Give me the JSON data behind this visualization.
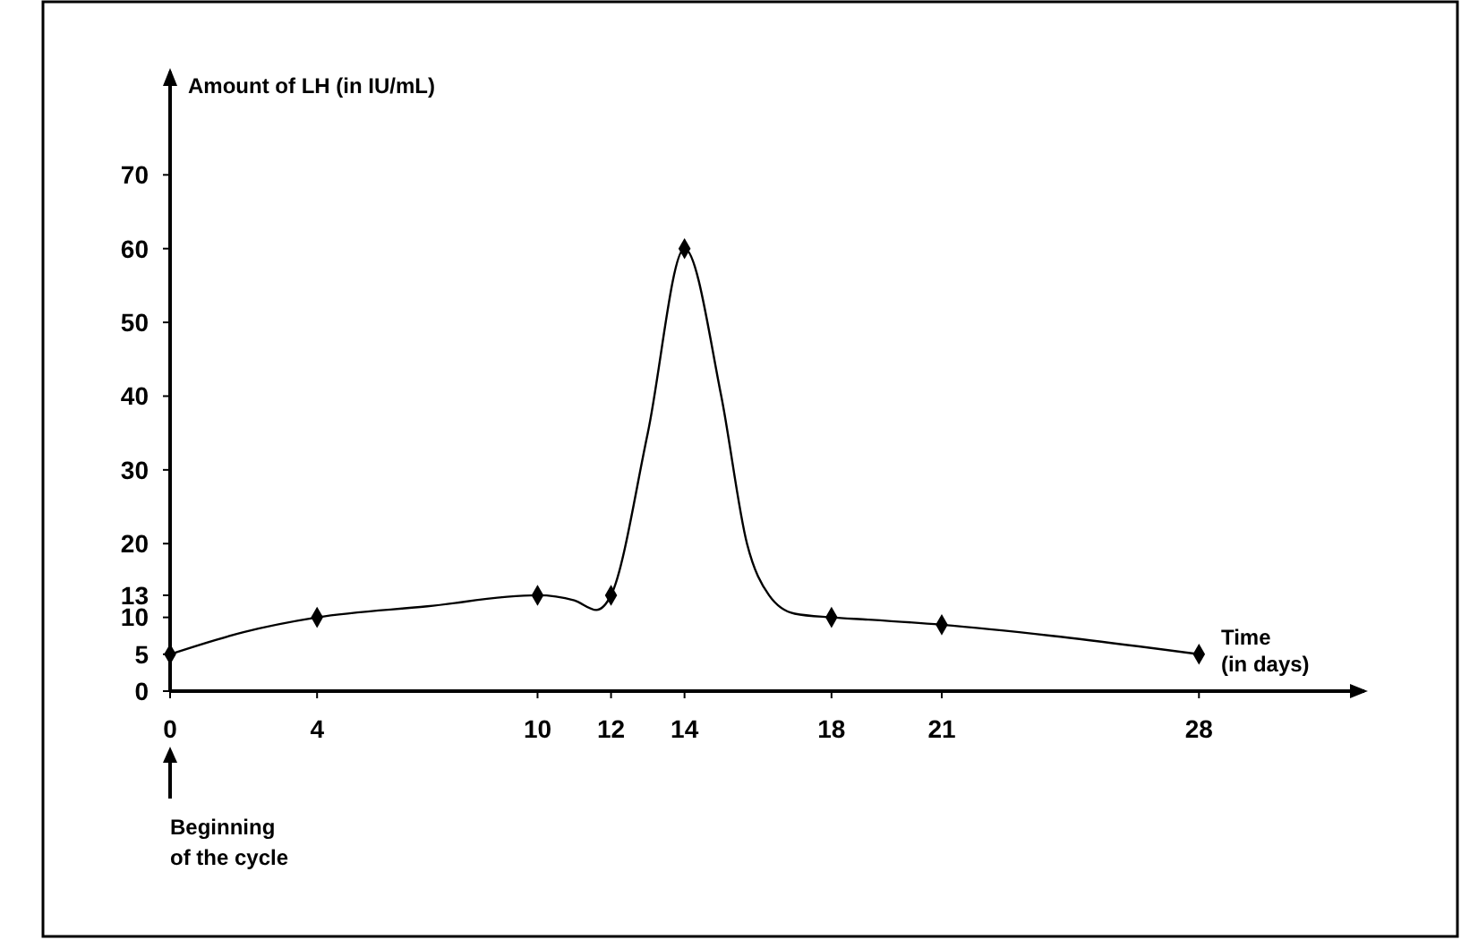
{
  "chart_data": {
    "type": "line",
    "ylabel": "Amount of LH (in IU/mL)",
    "xlabel": "Time\n(in days)",
    "xlim": [
      0,
      32.5
    ],
    "ylim": [
      0,
      84
    ],
    "xticks": [
      0,
      4,
      10,
      12,
      14,
      18,
      21,
      28
    ],
    "yticks": [
      0,
      5,
      10,
      13,
      20,
      30,
      40,
      50,
      60,
      70
    ],
    "grid": false,
    "series": [
      {
        "color": "#000000",
        "marker": "none",
        "x": [
          0,
          2,
          4,
          7,
          10,
          11,
          11.6,
          12,
          13,
          14,
          15,
          15.7,
          16.3,
          17,
          18,
          19,
          21,
          24,
          28
        ],
        "values": [
          5,
          8,
          10,
          11.5,
          13,
          12.3,
          11,
          13,
          35,
          60,
          40,
          20,
          13,
          10.5,
          10,
          9.7,
          9,
          7.5,
          5
        ]
      },
      {
        "type": "scatter",
        "color": "#000000",
        "marker": "diamond",
        "x": [
          0,
          4,
          10,
          12,
          14,
          18,
          21,
          28
        ],
        "values": [
          5,
          10,
          13,
          13,
          60,
          10,
          9,
          5
        ]
      }
    ],
    "annotations": [
      "Beginning\nof the cycle"
    ]
  }
}
